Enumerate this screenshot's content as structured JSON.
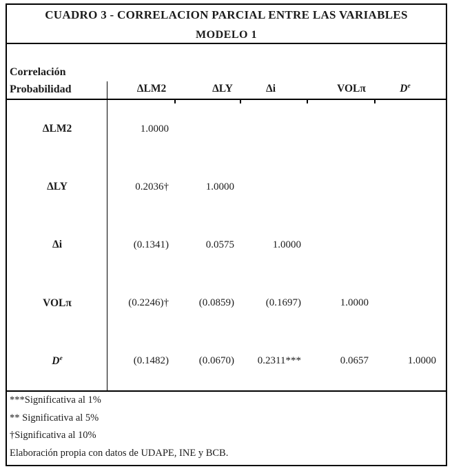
{
  "colors": {
    "text": "#1b1b1b",
    "border": "#000000",
    "background": "#ffffff"
  },
  "title": {
    "line1": "CUADRO 3 - CORRELACION PARCIAL ENTRE LAS VARIABLES",
    "line2": "MODELO 1"
  },
  "header": {
    "corner_line1": "Correlación",
    "corner_line2": "Probabilidad",
    "columns": [
      {
        "label": "ΔLM2"
      },
      {
        "label": "ΔLY"
      },
      {
        "label": "Δi"
      },
      {
        "label": "VOLπ"
      },
      {
        "label": "D",
        "sup": "e"
      }
    ]
  },
  "matrix": {
    "rows": [
      {
        "label": "ΔLM2",
        "cells": [
          "1.0000",
          "",
          "",
          "",
          ""
        ]
      },
      {
        "label": "ΔLY",
        "cells": [
          "0.2036†",
          "1.0000",
          "",
          "",
          ""
        ]
      },
      {
        "label": "Δi",
        "cells": [
          "(0.1341)",
          "0.0575",
          "1.0000",
          "",
          ""
        ]
      },
      {
        "label": "VOLπ",
        "cells": [
          "(0.2246)†",
          "(0.0859)",
          "(0.1697)",
          "1.0000",
          ""
        ]
      },
      {
        "label": "D",
        "label_sup": "e",
        "cells": [
          "(0.1482)",
          "(0.0670)",
          "0.2311***",
          "0.0657",
          "1.0000"
        ]
      }
    ]
  },
  "footnotes": [
    "***Significativa al 1%",
    "** Significativa al 5%",
    "†Significativa al 10%",
    "Elaboración  propia con datos de UDAPE, INE y BCB."
  ]
}
